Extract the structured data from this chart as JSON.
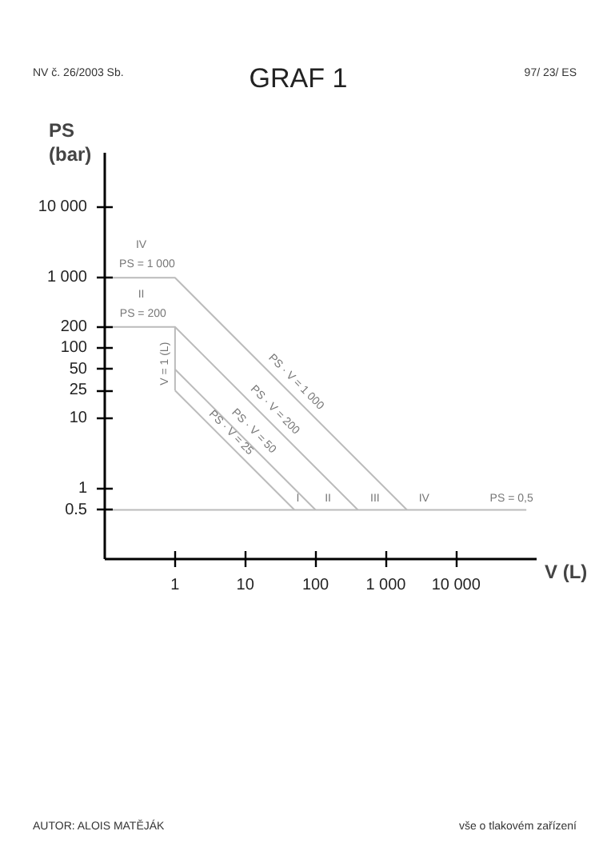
{
  "chart_data": {
    "type": "line",
    "title": "GRAF 1",
    "xlabel": "V (L)",
    "ylabel": "PS (bar)",
    "log": "xy",
    "grid": false,
    "marker": "none",
    "line_style": "solid",
    "xlim": [
      0.1,
      140000
    ],
    "ylim": [
      0.1,
      60000
    ],
    "xticks": [
      1,
      10,
      100,
      {
        "value": 1000,
        "label": "1 000"
      },
      {
        "value": 10000,
        "label": "10 000"
      }
    ],
    "yticks": [
      {
        "value": 0.5,
        "label": "0.5"
      },
      1,
      10,
      25,
      50,
      100,
      200,
      {
        "value": 1000,
        "label": "1 000"
      },
      {
        "value": 10000,
        "label": "10 000"
      }
    ],
    "series": [
      {
        "color": "#bbbbbb",
        "x": [
          0.1,
          1,
          2000
        ],
        "values": [
          1000,
          1000,
          0.5
        ]
      },
      {
        "color": "#bbbbbb",
        "x": [
          0.1,
          1,
          400
        ],
        "values": [
          200,
          200,
          0.5
        ]
      },
      {
        "color": "#bbbbbb",
        "x": [
          1,
          1
        ],
        "values": [
          200,
          25
        ]
      },
      {
        "color": "#bbbbbb",
        "x": [
          1,
          100
        ],
        "values": [
          50,
          0.5
        ]
      },
      {
        "color": "#bbbbbb",
        "x": [
          1,
          50
        ],
        "values": [
          25,
          0.5
        ]
      },
      {
        "color": "#bbbbbb",
        "x": [
          0.1,
          100000
        ],
        "values": [
          0.5,
          0.5
        ]
      }
    ],
    "annotations": [
      "NV č. 26/2003 Sb.",
      "97/ 23/ ES",
      "AUTOR: ALOIS MATĚJÁK",
      "vše o tlakovém zařízení",
      {
        "text": "PS = 1 000",
        "x": 0.4,
        "y": 1000
      },
      {
        "text": "PS = 200",
        "x": 0.35,
        "y": 200
      },
      {
        "text": "V = 1 (L)",
        "x": 1,
        "y": 60
      },
      {
        "text": "PS · V = 1 000",
        "x": 40,
        "y": 25
      },
      {
        "text": "PS · V = 200",
        "x": 20,
        "y": 10
      },
      {
        "text": "PS · V = 50",
        "x": 10,
        "y": 5
      },
      {
        "text": "PS · V = 25",
        "x": 5,
        "y": 5
      },
      {
        "text": "PS = 0,5",
        "x": 80000,
        "y": 0.5
      },
      {
        "text": "I",
        "x": 56,
        "y": 0.5
      },
      {
        "text": "II",
        "x": 150,
        "y": 0.5
      },
      {
        "text": "III",
        "x": 700,
        "y": 0.5
      },
      {
        "text": "IV",
        "x": 3500,
        "y": 0.5
      },
      {
        "text": "II",
        "x": 0.33,
        "y": 200
      },
      {
        "text": "IV",
        "x": 0.33,
        "y": 1000
      }
    ]
  }
}
